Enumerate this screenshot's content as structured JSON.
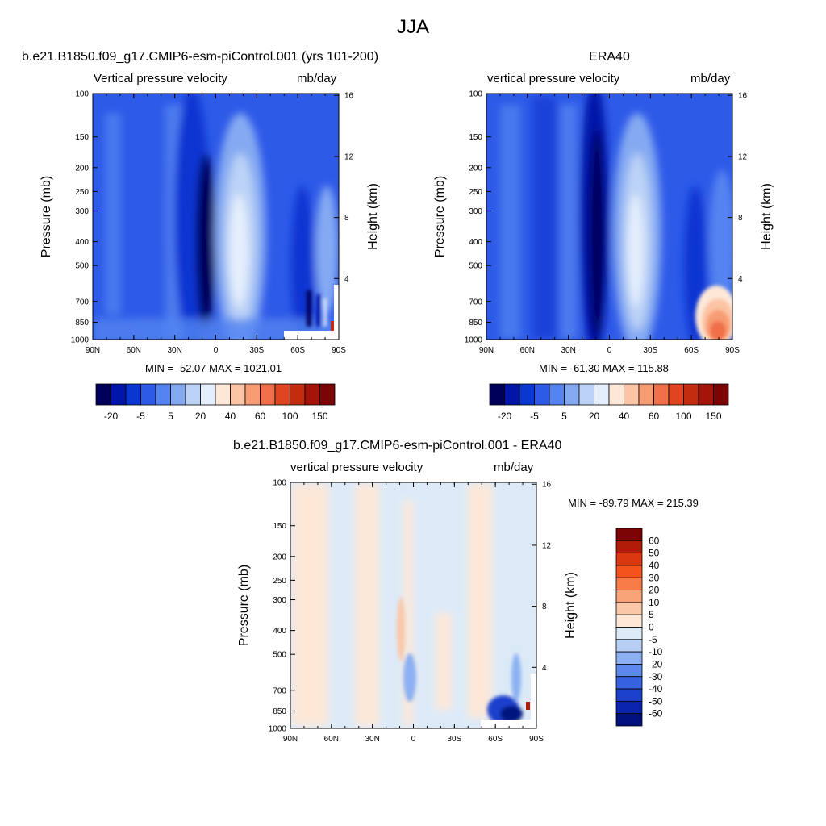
{
  "page_title": "JJA",
  "chart_data": [
    {
      "type": "heatmap",
      "title": "b.e21.B1850.f09_g17.CMIP6-esm-piControl.001 (yrs 101-200)",
      "left_label": "Vertical pressure velocity",
      "units_label": "mb/day",
      "ylabel": "Pressure (mb)",
      "ylabel_right": "Height (km)",
      "x_ticks": [
        "90N",
        "60N",
        "30N",
        "0",
        "30S",
        "60S",
        "90S"
      ],
      "y_ticks": [
        "100",
        "150",
        "200",
        "250",
        "300",
        "400",
        "500",
        "700",
        "850",
        "1000"
      ],
      "y_ticks_right": [
        "16",
        "12",
        "8",
        "4"
      ],
      "ylim": [
        1000,
        100
      ],
      "y_scale": "log",
      "min_max": "MIN = -52.07  MAX = 1021.01",
      "colorbar_ticks": [
        "-20",
        "-5",
        "5",
        "20",
        "40",
        "60",
        "100",
        "150"
      ],
      "colorbar_orientation": "horizontal",
      "colormap": [
        "#00005a",
        "#0016a8",
        "#0a36d2",
        "#2e5ae8",
        "#5484f0",
        "#86aaf2",
        "#bcd2f6",
        "#e4eefc",
        "#fde8d8",
        "#fbc4a4",
        "#f89c74",
        "#f0704a",
        "#e04420",
        "#c42c10",
        "#a41408",
        "#7c0404"
      ],
      "field": "model"
    },
    {
      "type": "heatmap",
      "title": "ERA40",
      "left_label": "vertical pressure velocity",
      "units_label": "mb/day",
      "ylabel": "Pressure (mb)",
      "ylabel_right": "Height (km)",
      "x_ticks": [
        "90N",
        "60N",
        "30N",
        "0",
        "30S",
        "60S",
        "90S"
      ],
      "y_ticks": [
        "100",
        "150",
        "200",
        "250",
        "300",
        "400",
        "500",
        "700",
        "850",
        "1000"
      ],
      "y_ticks_right": [
        "16",
        "12",
        "8",
        "4"
      ],
      "ylim": [
        1000,
        100
      ],
      "y_scale": "log",
      "min_max": "MIN = -61.30  MAX = 115.88",
      "colorbar_ticks": [
        "-20",
        "-5",
        "5",
        "20",
        "40",
        "60",
        "100",
        "150"
      ],
      "colorbar_orientation": "horizontal",
      "field": "obs"
    },
    {
      "type": "heatmap",
      "title": "b.e21.B1850.f09_g17.CMIP6-esm-piControl.001 - ERA40",
      "left_label": "vertical pressure velocity",
      "units_label": "mb/day",
      "ylabel": "Pressure (mb)",
      "ylabel_right": "Height (km)",
      "x_ticks": [
        "90N",
        "60N",
        "30N",
        "0",
        "30S",
        "60S",
        "90S"
      ],
      "y_ticks": [
        "100",
        "150",
        "200",
        "250",
        "300",
        "400",
        "500",
        "700",
        "850",
        "1000"
      ],
      "y_ticks_right": [
        "16",
        "12",
        "8",
        "4"
      ],
      "ylim": [
        1000,
        100
      ],
      "y_scale": "log",
      "min_max": "MIN = -89.79  MAX = 215.39",
      "colorbar_ticks": [
        "60",
        "50",
        "40",
        "30",
        "20",
        "10",
        "5",
        "0",
        "-5",
        "-10",
        "-20",
        "-30",
        "-40",
        "-50",
        "-60"
      ],
      "colorbar_orientation": "vertical",
      "colormap": [
        "#7c0404",
        "#b01c08",
        "#dc3810",
        "#f4541c",
        "#f87c48",
        "#f8a478",
        "#fac8a8",
        "#fde8d8",
        "#dceaf8",
        "#b8d0f6",
        "#8cb0f2",
        "#5e88ec",
        "#3662e2",
        "#1a40cc",
        "#0a24b0",
        "#00127e"
      ],
      "field": "diff"
    }
  ]
}
